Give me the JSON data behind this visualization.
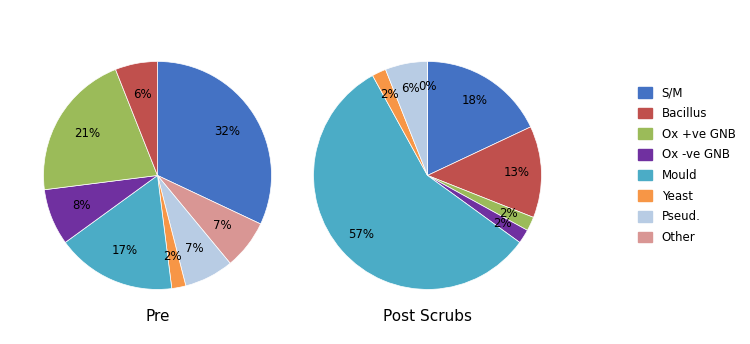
{
  "pre_values": [
    32,
    6,
    21,
    8,
    17,
    2,
    7,
    7
  ],
  "pre_order": [
    0,
    1,
    2,
    3,
    4,
    5,
    6,
    7
  ],
  "post_values": [
    18,
    13,
    2,
    2,
    57,
    2,
    6,
    0
  ],
  "post_order": [
    0,
    1,
    2,
    3,
    4,
    5,
    6,
    7
  ],
  "colors": [
    "#4472C4",
    "#C0504D",
    "#9BBB59",
    "#7030A0",
    "#4BACC6",
    "#F79646",
    "#B8CCE4",
    "#D99694"
  ],
  "pre_title": "Pre",
  "post_title": "Post Scrubs",
  "legend_labels": [
    "S/M",
    "Bacillus",
    "Ox +ve GNB",
    "Ox -ve GNB",
    "Mould",
    "Yeast",
    "Pseud.",
    "Other"
  ],
  "background_color": "#ffffff",
  "pre_startangle": 90,
  "post_startangle": 90
}
